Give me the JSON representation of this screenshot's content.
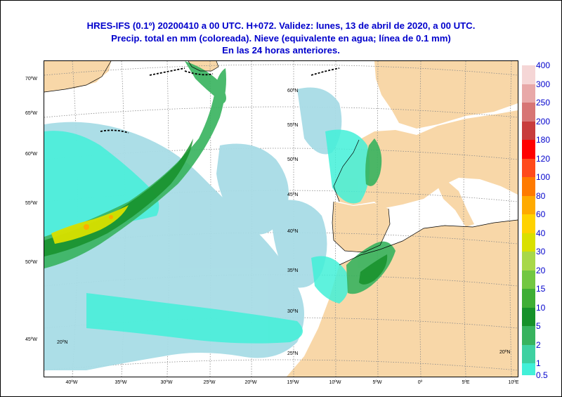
{
  "title_lines": [
    "HRES-IFS (0.1º) 20200410 a 00 UTC.  H+072. Validez: lunes, 13 de abril de 2020,  a  00 UTC.",
    "Precip. total en mm (coloreada). Nieve (equivalente en agua; línea de 0.1 mm)",
    "En las 24 horas anteriores."
  ],
  "left_lat_labels": [
    "70ºW",
    "65ºW",
    "60ºW",
    "55ºW",
    "50ºW",
    "45ºW"
  ],
  "bottom_lon_labels": [
    "40ºW",
    "35ºW",
    "30ºW",
    "25ºW",
    "20ºW",
    "15ºW",
    "10ºW",
    "5ºW",
    "0º",
    "5ºE",
    "10ºE"
  ],
  "inner_lat_labels": [
    "60ºN",
    "55ºN",
    "50ºN",
    "45ºN",
    "40ºN",
    "35ºN",
    "30ºN",
    "25ºN"
  ],
  "inner_corner_labels": [
    "20ºN",
    "20ºN"
  ],
  "legend": {
    "labels": [
      "400",
      "300",
      "250",
      "200",
      "180",
      "120",
      "100",
      "80",
      "60",
      "40",
      "30",
      "20",
      "15",
      "10",
      "5",
      "2",
      "1",
      "0.5"
    ],
    "colors": [
      "#f5d6d6",
      "#e8a8a8",
      "#d77575",
      "#c83c3c",
      "#ff0000",
      "#ff4a1c",
      "#ff7a00",
      "#ffaa00",
      "#ffd200",
      "#d9e000",
      "#a8d84a",
      "#72c742",
      "#3fae35",
      "#16912a",
      "#37b35e",
      "#3ed1a1",
      "#42f0d8",
      "#a8dce6"
    ]
  },
  "colors": {
    "title": "#0000cc",
    "land": "#f8d7a8",
    "sea": "#ffffff",
    "precip_light": "#a8dce6"
  }
}
